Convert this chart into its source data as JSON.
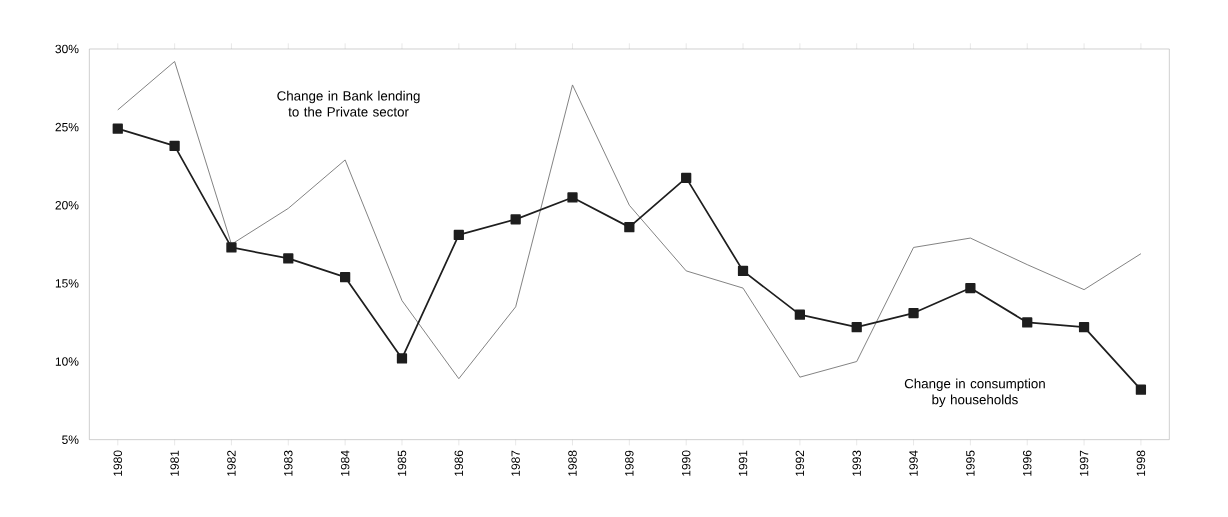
{
  "chart_data": {
    "type": "line",
    "categories": [
      "1980",
      "1981",
      "1982",
      "1983",
      "1984",
      "1985",
      "1986",
      "1987",
      "1988",
      "1989",
      "1990",
      "1991",
      "1992",
      "1993",
      "1994",
      "1995",
      "1996",
      "1997",
      "1998"
    ],
    "series": [
      {
        "color": "#7a7a7a",
        "marker": "none",
        "values": [
          26.1,
          29.2,
          17.5,
          19.8,
          22.9,
          13.9,
          8.9,
          13.5,
          27.7,
          20.0,
          15.8,
          14.7,
          9.0,
          10.0,
          17.3,
          17.9,
          16.2,
          14.6,
          16.9
        ]
      },
      {
        "color": "#1e1e1e",
        "marker": "square",
        "values": [
          24.9,
          23.8,
          17.3,
          16.6,
          15.4,
          10.2,
          18.1,
          19.1,
          20.5,
          18.6,
          21.75,
          15.8,
          13.0,
          12.2,
          13.1,
          14.7,
          12.5,
          12.2,
          8.2
        ]
      }
    ],
    "ylim": [
      5,
      30
    ],
    "yticks": [
      {
        "value": 5,
        "label": "5%"
      },
      {
        "value": 10,
        "label": "10%"
      },
      {
        "value": 15,
        "label": "15%"
      },
      {
        "value": 20,
        "label": "20%"
      },
      {
        "value": 25,
        "label": "25%"
      },
      {
        "value": 30,
        "label": "30%"
      }
    ],
    "grid": false,
    "annotations": [
      "Change in Bank lending to the Private sector",
      "Change in consumption by households"
    ]
  }
}
